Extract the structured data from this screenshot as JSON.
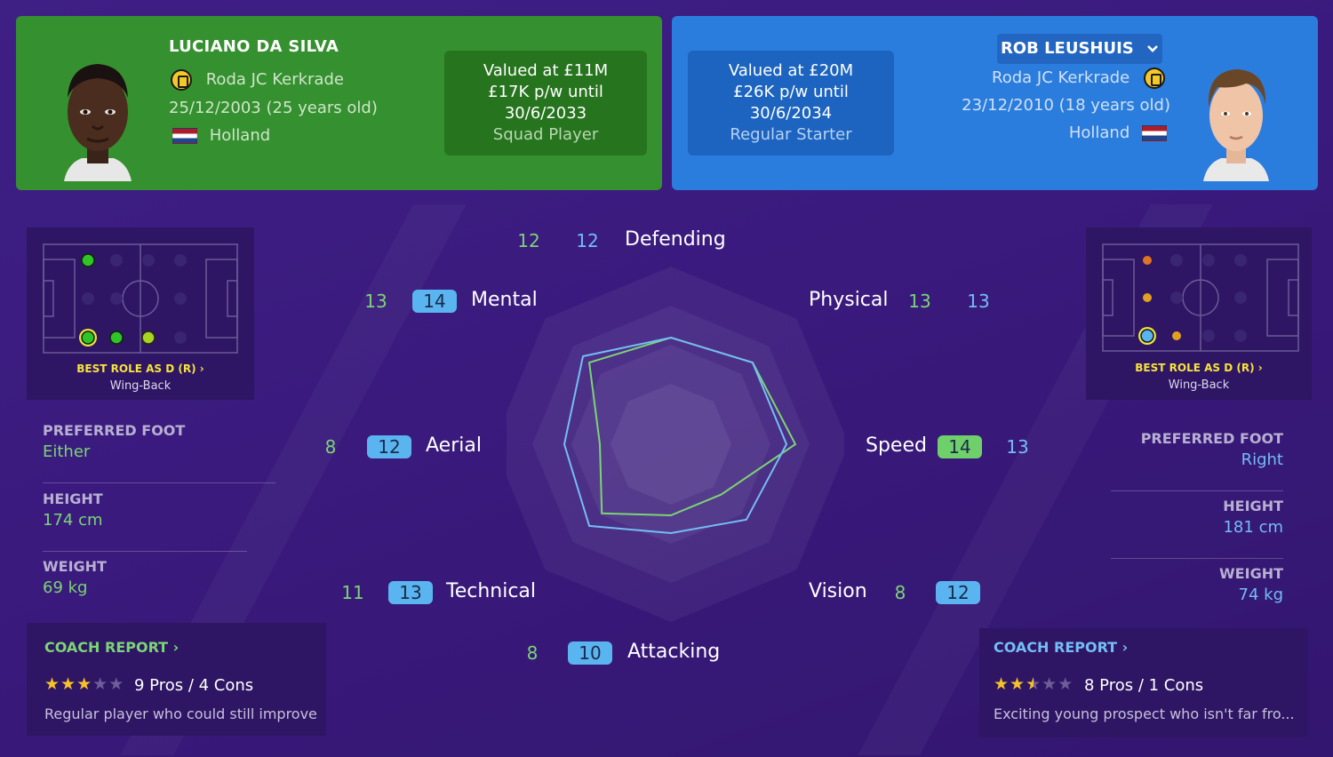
{
  "colors": {
    "left_player": "#35902f",
    "right_player": "#2b7ddd",
    "left_stat": "#7bd475",
    "right_stat": "#74bdf5",
    "background": "#3a1a7d",
    "role_title": "#f6e23d"
  },
  "left_player": {
    "name": "LUCIANO DA SILVA",
    "club": "Roda JC Kerkrade",
    "dob": "25/12/2003 (25 years old)",
    "nationality": "Holland",
    "value_line1": "Valued at £11M",
    "value_line2": "£17K p/w until",
    "value_line3": "30/6/2033",
    "status": "Squad Player",
    "best_role_title": "BEST ROLE AS D (R)",
    "best_role": "Wing-Back",
    "preferred_foot_label": "PREFERRED FOOT",
    "preferred_foot": "Either",
    "height_label": "HEIGHT",
    "height": "174 cm",
    "weight_label": "WEIGHT",
    "weight": "69 kg",
    "coach_report_title": "COACH REPORT",
    "stars": 3,
    "pros_cons": "9 Pros / 4 Cons",
    "coach_summary": "Regular player who could still improve"
  },
  "right_player": {
    "name": "ROB LEUSHUIS",
    "club": "Roda JC Kerkrade",
    "dob": "23/12/2010 (18 years old)",
    "nationality": "Holland",
    "value_line1": "Valued at £20M",
    "value_line2": "£26K p/w until",
    "value_line3": "30/6/2034",
    "status": "Regular Starter",
    "best_role_title": "BEST ROLE AS D (R)",
    "best_role": "Wing-Back",
    "preferred_foot_label": "PREFERRED FOOT",
    "preferred_foot": "Right",
    "height_label": "HEIGHT",
    "height": "181 cm",
    "weight_label": "WEIGHT",
    "weight": "74 kg",
    "coach_report_title": "COACH REPORT",
    "stars": 2.5,
    "pros_cons": "8 Pros / 1 Cons",
    "coach_summary": "Exciting young prospect who isn't far fro..."
  },
  "attributes": {
    "defending": {
      "label": "Defending",
      "left": "12",
      "right": "12"
    },
    "physical": {
      "label": "Physical",
      "left": "13",
      "right": "13"
    },
    "speed": {
      "label": "Speed",
      "left": "14",
      "right": "13"
    },
    "vision": {
      "label": "Vision",
      "left": "8",
      "right": "12"
    },
    "attacking": {
      "label": "Attacking",
      "left": "8",
      "right": "10"
    },
    "technical": {
      "label": "Technical",
      "left": "11",
      "right": "13"
    },
    "aerial": {
      "label": "Aerial",
      "left": "8",
      "right": "12"
    },
    "mental": {
      "label": "Mental",
      "left": "13",
      "right": "14"
    }
  },
  "chevron_icon": "chevron-right-icon",
  "dropdown_icon": "chevron-down-icon"
}
